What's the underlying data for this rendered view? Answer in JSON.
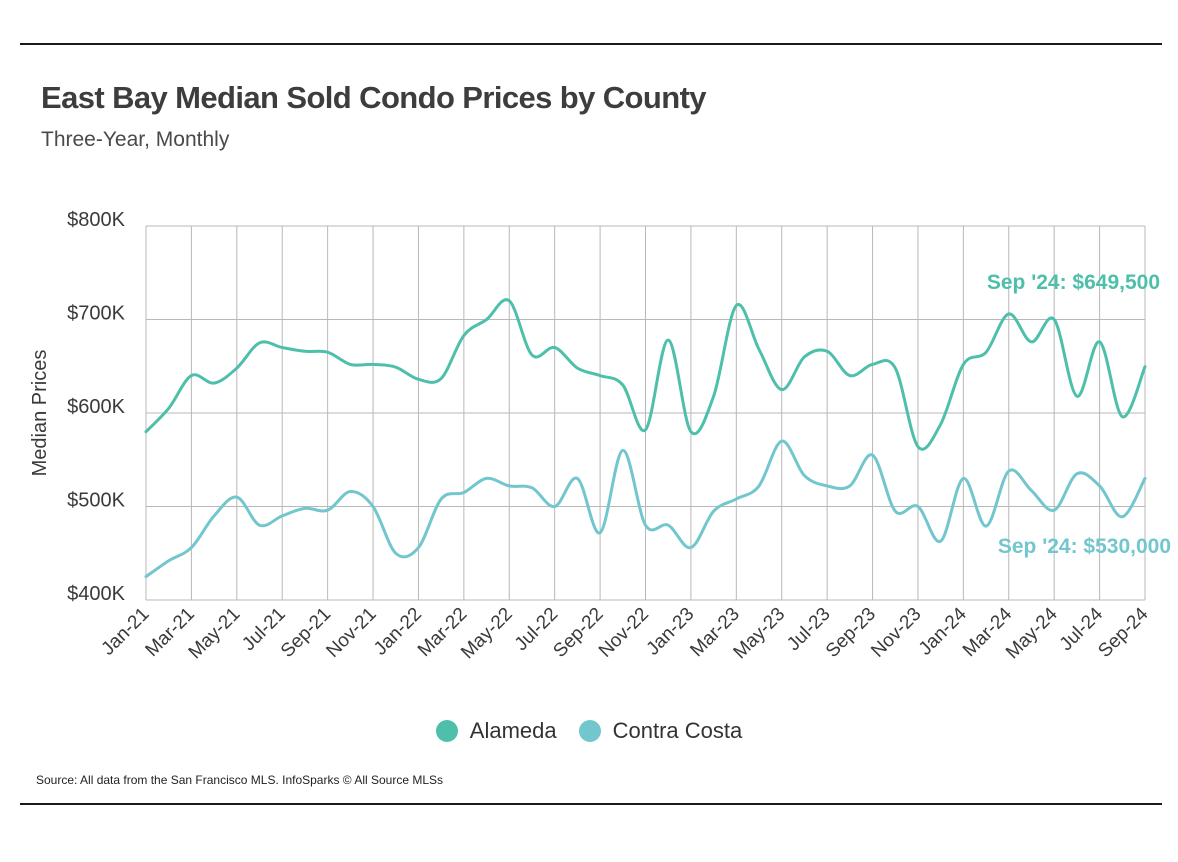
{
  "title": "East Bay Median Sold Condo Prices by County",
  "subtitle": "Three-Year, Monthly",
  "source": "Source:  All data from the San Francisco MLS. InfoSparks © All Source MLSs",
  "colors": {
    "alameda": "#4dbfaa",
    "contra_costa": "#72c6cd",
    "grid": "#b8b8b8",
    "axis_text": "#3a3a3a"
  },
  "chart_data": {
    "type": "line",
    "ylabel": "Median Prices",
    "ylim": [
      400000,
      800000
    ],
    "yticks": [
      400000,
      500000,
      600000,
      700000,
      800000
    ],
    "ytick_labels": [
      "$400K",
      "$500K",
      "$600K",
      "$700K",
      "$800K"
    ],
    "x": [
      "Jan-21",
      "Feb-21",
      "Mar-21",
      "Apr-21",
      "May-21",
      "Jun-21",
      "Jul-21",
      "Aug-21",
      "Sep-21",
      "Oct-21",
      "Nov-21",
      "Dec-21",
      "Jan-22",
      "Feb-22",
      "Mar-22",
      "Apr-22",
      "May-22",
      "Jun-22",
      "Jul-22",
      "Aug-22",
      "Sep-22",
      "Oct-22",
      "Nov-22",
      "Dec-22",
      "Jan-23",
      "Feb-23",
      "Mar-23",
      "Apr-23",
      "May-23",
      "Jun-23",
      "Jul-23",
      "Aug-23",
      "Sep-23",
      "Oct-23",
      "Nov-23",
      "Dec-23",
      "Jan-24",
      "Feb-24",
      "Mar-24",
      "Apr-24",
      "May-24",
      "Jun-24",
      "Jul-24",
      "Aug-24",
      "Sep-24"
    ],
    "xtick_labels": [
      "Jan-21",
      "Mar-21",
      "May-21",
      "Jul-21",
      "Sep-21",
      "Nov-21",
      "Jan-22",
      "Mar-22",
      "May-22",
      "Jul-22",
      "Sep-22",
      "Nov-22",
      "Jan-23",
      "Mar-23",
      "May-23",
      "Jul-23",
      "Sep-23",
      "Nov-23",
      "Jan-24",
      "Mar-24",
      "May-24",
      "Jul-24",
      "Sep-24"
    ],
    "grid": true,
    "legend_position": "bottom",
    "series": [
      {
        "name": "Alameda",
        "values": [
          580000,
          605000,
          640000,
          632000,
          648000,
          675000,
          670000,
          666000,
          665000,
          652000,
          652000,
          649000,
          636000,
          637000,
          683000,
          700000,
          720000,
          662000,
          670000,
          648000,
          640000,
          630000,
          582000,
          678000,
          580000,
          618000,
          715000,
          668000,
          625000,
          660000,
          666000,
          640000,
          652000,
          648000,
          564000,
          588000,
          652000,
          665000,
          706000,
          676000,
          700000,
          618000,
          676000,
          596000,
          649500
        ]
      },
      {
        "name": "Contra Costa",
        "values": [
          425000,
          442000,
          456000,
          490000,
          510000,
          480000,
          490000,
          498000,
          496000,
          516000,
          500000,
          450000,
          456000,
          508000,
          515000,
          530000,
          522000,
          520000,
          500000,
          530000,
          472000,
          560000,
          480000,
          480000,
          456000,
          495000,
          508000,
          522000,
          570000,
          533000,
          522000,
          522000,
          555000,
          495000,
          500000,
          463000,
          530000,
          479000,
          538000,
          517000,
          496000,
          535000,
          522000,
          489000,
          530000
        ]
      }
    ],
    "annotations": [
      {
        "series": "Alameda",
        "text": "Sep '24: $649,500"
      },
      {
        "series": "Contra Costa",
        "text": "Sep '24: $530,000"
      }
    ]
  }
}
